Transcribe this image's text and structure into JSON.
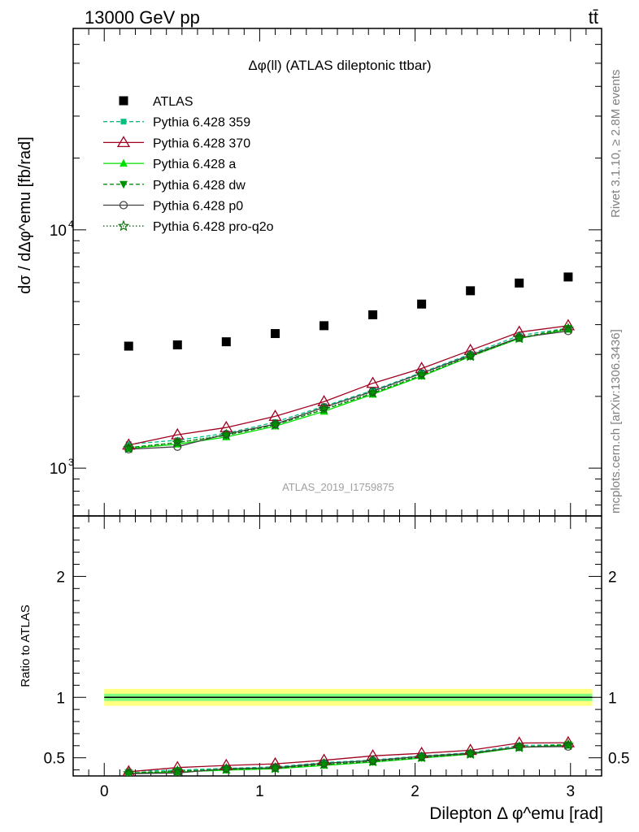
{
  "header": {
    "energy_label": "13000 GeV pp",
    "process_label": "tt̄"
  },
  "side_labels": {
    "rivet": "Rivet 3.1.10, ≥ 2.8M events",
    "mcplots": "mcplots.cern.ch [arXiv:1306.3436]"
  },
  "colors": {
    "data": "#000000",
    "py359": "#00c080",
    "py370": "#a00020",
    "pya": "#00e000",
    "pydw": "#009000",
    "pyp0": "#404040",
    "pyq2o": "#007000",
    "band_outer": "#ffff80",
    "band_inner": "#80ff80"
  },
  "chart_data": [
    {
      "type": "scatter",
      "title": "Δφ(ll) (ATLAS dileptonic ttbar)",
      "watermark": "ATLAS_2019_I1759875",
      "ylabel": "dσ / dΔφ^emu [fb/rad]",
      "yscale": "log",
      "xlim": [
        -0.2,
        3.2
      ],
      "ylim": [
        630,
        70000
      ],
      "ytick_labels": [
        "10^3",
        "10^4"
      ],
      "legend_position": "upper-left",
      "x": [
        0.157,
        0.471,
        0.785,
        1.1,
        1.414,
        1.728,
        2.042,
        2.356,
        2.67,
        2.985
      ],
      "series": [
        {
          "name": "ATLAS",
          "values": [
            3250,
            3290,
            3390,
            3670,
            3960,
            4400,
            4880,
            5550,
            5980,
            6340
          ]
        },
        {
          "name": "Pythia 6.428 359",
          "values": [
            1260,
            1310,
            1400,
            1560,
            1820,
            2120,
            2520,
            3010,
            3600,
            3870
          ]
        },
        {
          "name": "Pythia 6.428 370",
          "values": [
            1250,
            1380,
            1480,
            1650,
            1900,
            2270,
            2620,
            3120,
            3720,
            3960
          ]
        },
        {
          "name": "Pythia 6.428 a",
          "values": [
            1210,
            1260,
            1350,
            1500,
            1730,
            2040,
            2430,
            2940,
            3500,
            3820
          ]
        },
        {
          "name": "Pythia 6.428 dw",
          "values": [
            1220,
            1280,
            1370,
            1520,
            1760,
            2060,
            2450,
            2950,
            3520,
            3860
          ]
        },
        {
          "name": "Pythia 6.428 p0",
          "values": [
            1200,
            1230,
            1390,
            1530,
            1800,
            2100,
            2500,
            2980,
            3530,
            3760
          ]
        },
        {
          "name": "Pythia 6.428 pro-q2o",
          "values": [
            1210,
            1280,
            1380,
            1520,
            1770,
            2070,
            2460,
            2950,
            3510,
            3840
          ]
        }
      ]
    },
    {
      "type": "line",
      "ylabel": "Ratio to ATLAS",
      "xlabel": "Dilepton Δ φ^emu [rad]",
      "xlim": [
        -0.2,
        3.2
      ],
      "ylim": [
        0.35,
        2.5
      ],
      "xticks": [
        0,
        1,
        2,
        3
      ],
      "yticks": [
        0.5,
        1,
        2
      ],
      "x": [
        0.157,
        0.471,
        0.785,
        1.1,
        1.414,
        1.728,
        2.042,
        2.356,
        2.67,
        2.985
      ],
      "band_outer": [
        0.93,
        1.07
      ],
      "band_inner": [
        0.97,
        1.03
      ],
      "series": [
        {
          "name": "Pythia 6.428 359",
          "values": [
            0.388,
            0.398,
            0.413,
            0.425,
            0.46,
            0.482,
            0.516,
            0.542,
            0.602,
            0.61
          ]
        },
        {
          "name": "Pythia 6.428 370",
          "values": [
            0.385,
            0.419,
            0.437,
            0.45,
            0.48,
            0.516,
            0.537,
            0.562,
            0.622,
            0.625
          ]
        },
        {
          "name": "Pythia 6.428 a",
          "values": [
            0.372,
            0.383,
            0.398,
            0.409,
            0.437,
            0.464,
            0.498,
            0.53,
            0.585,
            0.603
          ]
        },
        {
          "name": "Pythia 6.428 dw",
          "values": [
            0.375,
            0.389,
            0.404,
            0.414,
            0.444,
            0.468,
            0.502,
            0.532,
            0.589,
            0.609
          ]
        },
        {
          "name": "Pythia 6.428 p0",
          "values": [
            0.369,
            0.374,
            0.41,
            0.417,
            0.455,
            0.477,
            0.512,
            0.537,
            0.59,
            0.593
          ]
        },
        {
          "name": "Pythia 6.428 pro-q2o",
          "values": [
            0.372,
            0.389,
            0.407,
            0.414,
            0.447,
            0.47,
            0.504,
            0.532,
            0.587,
            0.606
          ]
        }
      ]
    }
  ]
}
